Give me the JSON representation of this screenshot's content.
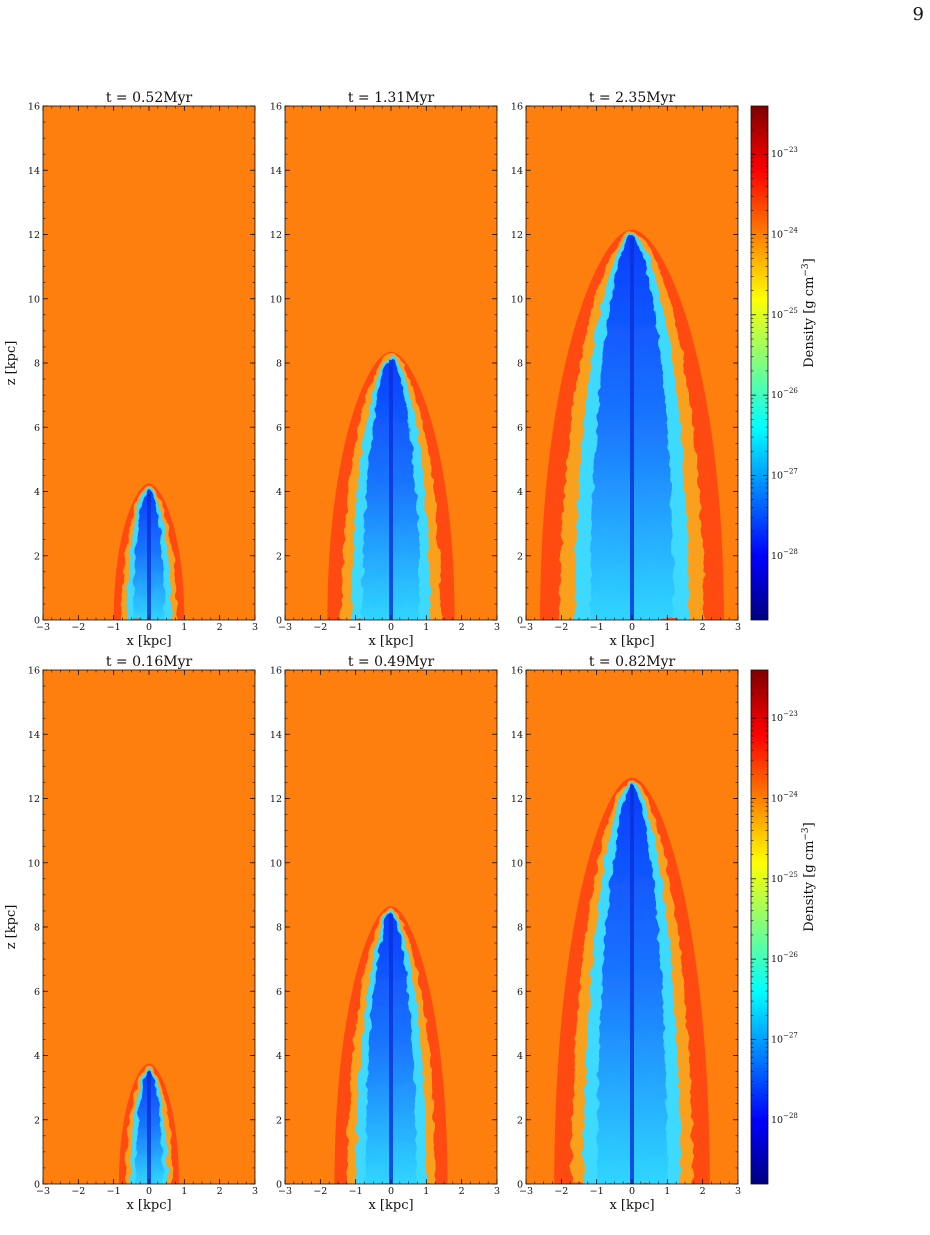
{
  "page": {
    "number": "9"
  },
  "colors": {
    "ambient": "#ff7f0e",
    "cmap": [
      "#00007f",
      "#0000ff",
      "#007fff",
      "#00ffff",
      "#7fff7f",
      "#ffff00",
      "#ff7f00",
      "#ff0000",
      "#7f0000"
    ]
  },
  "chart_data": [
    {
      "type": "heatmap",
      "title": "t = 0.52Myr",
      "xlabel": "x [kpc]",
      "ylabel": "z [kpc]",
      "xlim": [
        -3,
        3
      ],
      "ylim": [
        0,
        16
      ],
      "xticks": [
        -3,
        -2,
        -1,
        0,
        1,
        2,
        3
      ],
      "yticks": [
        0,
        2,
        4,
        6,
        8,
        10,
        12,
        14,
        16
      ],
      "bubble_height": 4.2,
      "bubble_halfwidth": 1.0
    },
    {
      "type": "heatmap",
      "title": "t = 1.31Myr",
      "xlabel": "x [kpc]",
      "ylabel": "",
      "xlim": [
        -3,
        3
      ],
      "ylim": [
        0,
        16
      ],
      "xticks": [
        -3,
        -2,
        -1,
        0,
        1,
        2,
        3
      ],
      "yticks": [
        0,
        2,
        4,
        6,
        8,
        10,
        12,
        14,
        16
      ],
      "bubble_height": 8.3,
      "bubble_halfwidth": 1.8
    },
    {
      "type": "heatmap",
      "title": "t = 2.35Myr",
      "xlabel": "x [kpc]",
      "ylabel": "",
      "xlim": [
        -3,
        3
      ],
      "ylim": [
        0,
        16
      ],
      "xticks": [
        -3,
        -2,
        -1,
        0,
        1,
        2,
        3
      ],
      "yticks": [
        0,
        2,
        4,
        6,
        8,
        10,
        12,
        14,
        16
      ],
      "bubble_height": 12.1,
      "bubble_halfwidth": 2.6
    },
    {
      "type": "heatmap",
      "title": "t = 0.16Myr",
      "xlabel": "x [kpc]",
      "ylabel": "z [kpc]",
      "xlim": [
        -3,
        3
      ],
      "ylim": [
        0,
        16
      ],
      "xticks": [
        -3,
        -2,
        -1,
        0,
        1,
        2,
        3
      ],
      "yticks": [
        0,
        2,
        4,
        6,
        8,
        10,
        12,
        14,
        16
      ],
      "bubble_height": 3.7,
      "bubble_halfwidth": 0.85
    },
    {
      "type": "heatmap",
      "title": "t = 0.49Myr",
      "xlabel": "x [kpc]",
      "ylabel": "",
      "xlim": [
        -3,
        3
      ],
      "ylim": [
        0,
        16
      ],
      "xticks": [
        -3,
        -2,
        -1,
        0,
        1,
        2,
        3
      ],
      "yticks": [
        0,
        2,
        4,
        6,
        8,
        10,
        12,
        14,
        16
      ],
      "bubble_height": 8.6,
      "bubble_halfwidth": 1.6
    },
    {
      "type": "heatmap",
      "title": "t = 0.82Myr",
      "xlabel": "x [kpc]",
      "ylabel": "",
      "xlim": [
        -3,
        3
      ],
      "ylim": [
        0,
        16
      ],
      "xticks": [
        -3,
        -2,
        -1,
        0,
        1,
        2,
        3
      ],
      "yticks": [
        0,
        2,
        4,
        6,
        8,
        10,
        12,
        14,
        16
      ],
      "bubble_height": 12.6,
      "bubble_halfwidth": 2.2
    }
  ],
  "colorbars": [
    {
      "label": "Density [g cm",
      "label_exp": "−3",
      "label_end": "]",
      "ticks": [
        {
          "base": "10",
          "exp": "−23",
          "value": -23
        },
        {
          "base": "10",
          "exp": "−24",
          "value": -24
        },
        {
          "base": "10",
          "exp": "−25",
          "value": -25
        },
        {
          "base": "10",
          "exp": "−26",
          "value": -26
        },
        {
          "base": "10",
          "exp": "−27",
          "value": -27
        },
        {
          "base": "10",
          "exp": "−28",
          "value": -28
        }
      ],
      "range": [
        -28.8,
        -22.4
      ]
    },
    {
      "label": "Density [g cm",
      "label_exp": "−3",
      "label_end": "]",
      "ticks": [
        {
          "base": "10",
          "exp": "−23",
          "value": -23
        },
        {
          "base": "10",
          "exp": "−24",
          "value": -24
        },
        {
          "base": "10",
          "exp": "−25",
          "value": -25
        },
        {
          "base": "10",
          "exp": "−26",
          "value": -26
        },
        {
          "base": "10",
          "exp": "−27",
          "value": -27
        },
        {
          "base": "10",
          "exp": "−28",
          "value": -28
        }
      ],
      "range": [
        -28.8,
        -22.4
      ]
    }
  ]
}
